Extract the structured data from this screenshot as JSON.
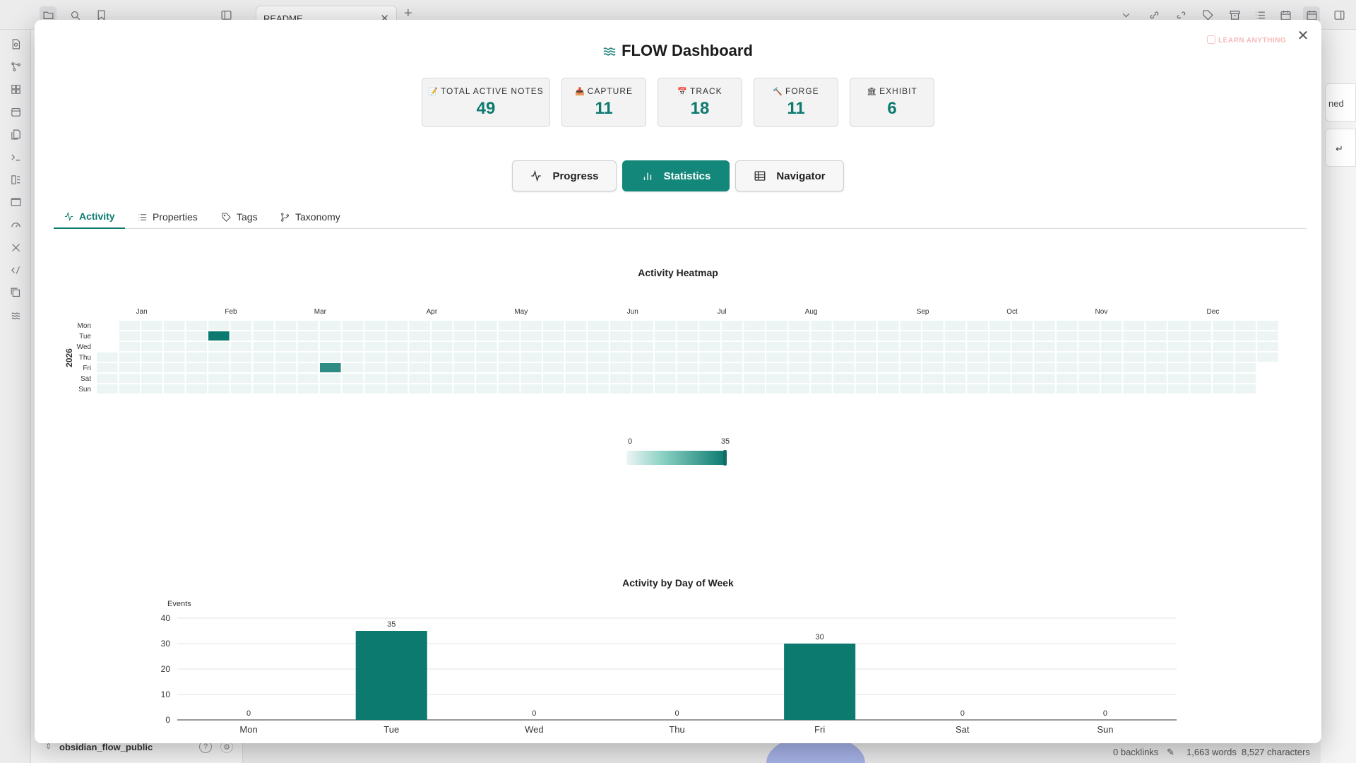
{
  "tab": {
    "label": "README"
  },
  "vault": {
    "name": "obsidian_flow_public"
  },
  "statusbar": {
    "backlinks": "0 backlinks",
    "words": "1,663 words",
    "characters": "8,527 characters"
  },
  "right_panel": {
    "card1": "ned",
    "card2": "↵"
  },
  "watermark": "LEARN ANYTHING",
  "dashboard": {
    "title": "FLOW Dashboard",
    "stats": [
      {
        "emoji": "📝",
        "label": "TOTAL ACTIVE NOTES",
        "value": "49"
      },
      {
        "emoji": "📥",
        "label": "CAPTURE",
        "value": "11"
      },
      {
        "emoji": "📅",
        "label": "TRACK",
        "value": "18"
      },
      {
        "emoji": "🔨",
        "label": "FORGE",
        "value": "11"
      },
      {
        "emoji": "🏛",
        "label": "EXHIBIT",
        "value": "6"
      }
    ],
    "views": [
      {
        "label": "Progress",
        "icon": "activity-icon",
        "active": false
      },
      {
        "label": "Statistics",
        "icon": "bar-chart-icon",
        "active": true
      },
      {
        "label": "Navigator",
        "icon": "table-icon",
        "active": false
      }
    ],
    "subtabs": [
      {
        "label": "Activity",
        "icon": "activity-icon",
        "active": true
      },
      {
        "label": "Properties",
        "icon": "list-icon",
        "active": false
      },
      {
        "label": "Tags",
        "icon": "tag-icon",
        "active": false
      },
      {
        "label": "Taxonomy",
        "icon": "branch-icon",
        "active": false
      }
    ]
  },
  "chart_data": [
    {
      "type": "heatmap",
      "title": "Activity Heatmap",
      "year": "2026",
      "months": [
        "Jan",
        "Feb",
        "Mar",
        "Apr",
        "May",
        "Jun",
        "Jul",
        "Aug",
        "Sep",
        "Oct",
        "Nov",
        "Dec"
      ],
      "days": [
        "Mon",
        "Tue",
        "Wed",
        "Thu",
        "Fri",
        "Sat",
        "Sun"
      ],
      "cells": [
        {
          "date": "2026-02-03",
          "value": 35
        },
        {
          "date": "2026-03-13",
          "value": 30
        }
      ],
      "scale": {
        "min": 0,
        "max": 35,
        "colors": [
          "#edf5f4",
          "#0d7a70"
        ]
      }
    },
    {
      "type": "bar",
      "title": "Activity by Day of Week",
      "ylabel": "Events",
      "categories": [
        "Mon",
        "Tue",
        "Wed",
        "Thu",
        "Fri",
        "Sat",
        "Sun"
      ],
      "values": [
        0,
        35,
        0,
        0,
        30,
        0,
        0
      ],
      "ylim": [
        0,
        40
      ],
      "yticks": [
        0,
        10,
        20,
        30,
        40
      ],
      "color": "#0d7a70"
    }
  ]
}
